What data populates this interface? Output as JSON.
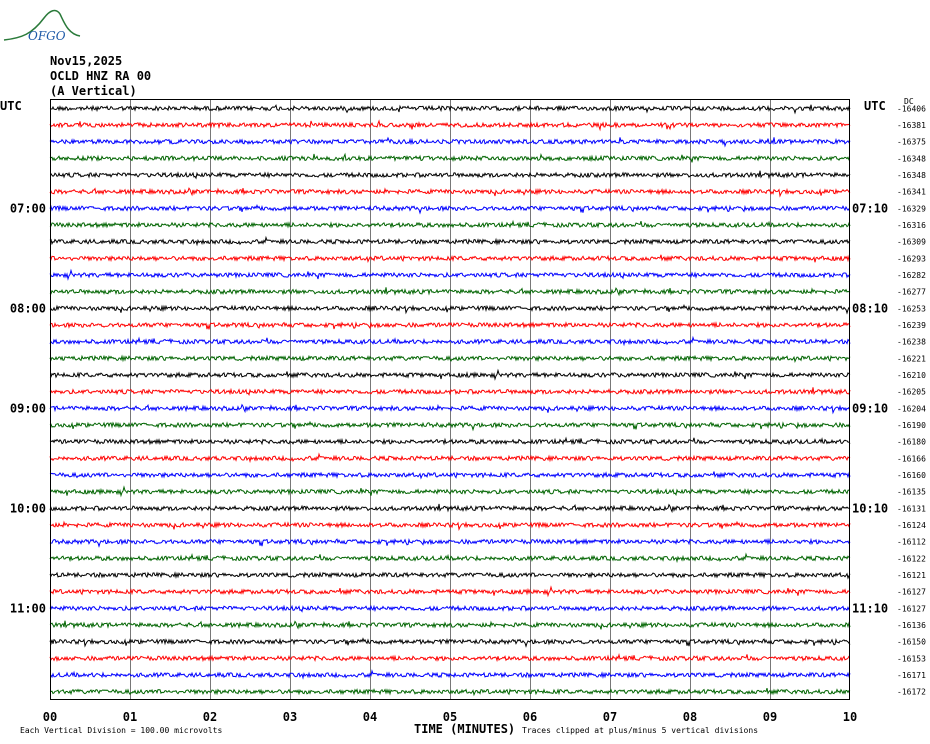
{
  "logo": {
    "text": "OFGO",
    "color": "#2a7a3a",
    "text_color": "#1e5aa8"
  },
  "header": {
    "date": "Nov15,2025",
    "station": "OCLD HNZ RA 00",
    "component": "(A Vertical)"
  },
  "corner": {
    "left_label": "UTC",
    "right_label": "UTC",
    "dc_label": "DC"
  },
  "footer": {
    "scale_note": "Each Vertical Division =  100.00 microvolts",
    "xlabel": "TIME (MINUTES)",
    "clip_note": "Traces clipped at plus/minus 5 vertical divisions"
  },
  "chart_data": {
    "type": "line",
    "title": "OCLD HNZ RA 00 (A Vertical) Nov15,2025",
    "xlabel": "TIME (MINUTES)",
    "ylabel": "",
    "xlim": [
      0,
      10
    ],
    "x_ticks": [
      "00",
      "01",
      "02",
      "03",
      "04",
      "05",
      "06",
      "07",
      "08",
      "09",
      "10"
    ],
    "minutes_per_line": 10,
    "left_time_labels": [
      {
        "line": 6,
        "label": "07:00"
      },
      {
        "line": 12,
        "label": "08:00"
      },
      {
        "line": 18,
        "label": "09:00"
      },
      {
        "line": 24,
        "label": "10:00"
      },
      {
        "line": 30,
        "label": "11:00"
      }
    ],
    "right_time_labels": [
      {
        "line": 6,
        "label": "07:10"
      },
      {
        "line": 12,
        "label": "08:10"
      },
      {
        "line": 18,
        "label": "09:10"
      },
      {
        "line": 24,
        "label": "10:10"
      },
      {
        "line": 30,
        "label": "11:10"
      }
    ],
    "trace_colors": [
      "#000000",
      "#ff0000",
      "#0000ff",
      "#006400"
    ],
    "dc_offsets": [
      -16406,
      -16381,
      -16375,
      -16348,
      -16348,
      -16341,
      -16329,
      -16316,
      -16309,
      -16293,
      -16282,
      -16277,
      -16253,
      -16239,
      -16238,
      -16221,
      -16210,
      -16205,
      -16204,
      -16190,
      -16180,
      -16166,
      -16160,
      -16135,
      -16131,
      -16124,
      -16112,
      -16122,
      -16121,
      -16127,
      -16127,
      -16136,
      -16150,
      -16153,
      -16171,
      -16172
    ],
    "grid": true
  }
}
